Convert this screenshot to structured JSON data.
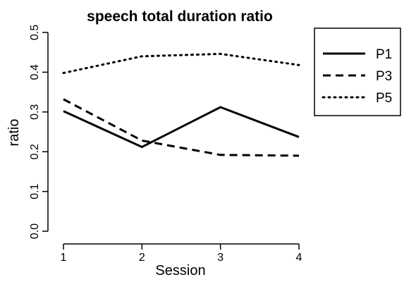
{
  "chart_data": {
    "type": "line",
    "title": "speech total duration ratio",
    "xlabel": "Session",
    "ylabel": "ratio",
    "x": [
      1,
      2,
      3,
      4
    ],
    "xlim": [
      1,
      4
    ],
    "ylim": [
      0.0,
      0.5
    ],
    "x_ticks": [
      "1",
      "2",
      "3",
      "4"
    ],
    "y_ticks": [
      "0.0",
      "0.1",
      "0.2",
      "0.3",
      "0.4",
      "0.5"
    ],
    "grid": false,
    "legend_position": "top-right, outside plot",
    "series": [
      {
        "name": "P1",
        "values": [
          0.302,
          0.212,
          0.312,
          0.237
        ],
        "line_style": "solid"
      },
      {
        "name": "P3",
        "values": [
          0.332,
          0.228,
          0.192,
          0.19
        ],
        "line_style": "dashed"
      },
      {
        "name": "P5",
        "values": [
          0.398,
          0.44,
          0.446,
          0.418
        ],
        "line_style": "dotted"
      }
    ],
    "colors": {
      "line": "#000000",
      "background": "#ffffff"
    }
  }
}
